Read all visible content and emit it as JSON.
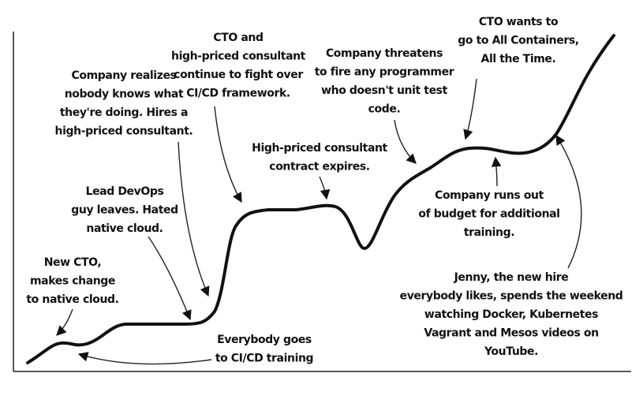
{
  "annotations": [
    {
      "lines": [
        "New CTO,",
        "makes change",
        "to native cloud."
      ]
    },
    {
      "lines": [
        "Lead DevOps",
        "guy leaves. Hated",
        "native cloud."
      ]
    },
    {
      "lines": [
        "Company realizes",
        "nobody knows what",
        "they're doing. Hires a",
        "high-priced consultant."
      ]
    },
    {
      "lines": [
        "CTO and",
        "high-priced consultant",
        "continue to fight over",
        "CI/CD framework."
      ]
    },
    {
      "lines": [
        "High-priced consultant",
        "contract expires."
      ]
    },
    {
      "lines": [
        "Company threatens",
        "to fire any programmer",
        "who doesn't unit test",
        "code."
      ]
    },
    {
      "lines": [
        "CTO wants to",
        "go to All Containers,",
        "All the Time."
      ]
    },
    {
      "lines": [
        "Company runs out",
        "of budget for additional",
        "training."
      ]
    },
    {
      "lines": [
        "Jenny, the new hire",
        "everybody likes, spends the weekend",
        "watching Docker, Kubernetes",
        "Vagrant and Mesos videos on",
        "YouTube."
      ]
    },
    {
      "lines": [
        "Everybody goes",
        "to CI/CD training"
      ]
    }
  ]
}
